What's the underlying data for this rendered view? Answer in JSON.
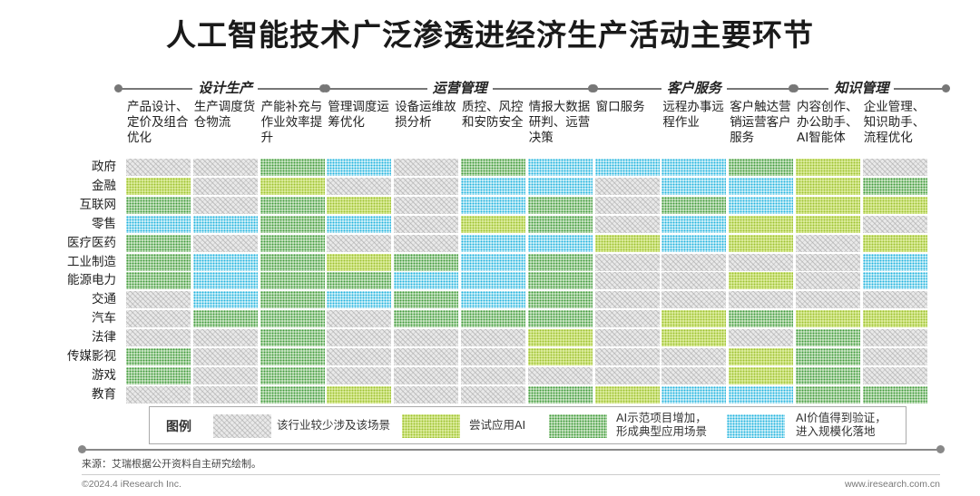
{
  "title": "人工智能技术广泛渗透进经济生产活动主要环节",
  "groups": [
    "设计生产",
    "运营管理",
    "客户服务",
    "知识管理"
  ],
  "chart_data": {
    "type": "heatmap",
    "title": "人工智能技术广泛渗透进经济生产活动主要环节",
    "columns": [
      "产品设计、定价及组合优化",
      "生产调度货仓物流",
      "产能补充与作业效率提升",
      "管理调度运筹优化",
      "设备运维故损分析",
      "质控、风控和安防安全",
      "情报大数据研判、远营决策",
      "窗口服务",
      "远程办事远程作业",
      "客户触达营销运营客户服务",
      "内容创作、办公助手、AI智能体",
      "企业管理、知识助手、流程优化"
    ],
    "column_groups": [
      {
        "name": "设计生产",
        "columns": [
          0,
          1,
          2
        ]
      },
      {
        "name": "运营管理",
        "columns": [
          3,
          4,
          5,
          6
        ]
      },
      {
        "name": "客户服务",
        "columns": [
          7,
          8,
          9
        ]
      },
      {
        "name": "知识管理",
        "columns": [
          10,
          11
        ]
      }
    ],
    "rows": [
      "政府",
      "金融",
      "互联网",
      "零售",
      "医疗医药",
      "工业制造",
      "能源电力",
      "交通",
      "汽车",
      "法律",
      "传媒影视",
      "游戏",
      "教育"
    ],
    "levels": [
      "该行业较少涉及该场景",
      "尝试应用AI",
      "AI示范项目增加，形成典型应用场景",
      "AI价值得到验证，进入规模化落地"
    ],
    "values": [
      [
        0,
        0,
        2,
        3,
        0,
        2,
        3,
        3,
        3,
        2,
        1,
        0
      ],
      [
        1,
        0,
        1,
        0,
        0,
        3,
        3,
        0,
        3,
        3,
        1,
        2
      ],
      [
        2,
        0,
        2,
        1,
        0,
        3,
        2,
        0,
        2,
        3,
        1,
        1
      ],
      [
        3,
        3,
        2,
        3,
        0,
        1,
        2,
        0,
        3,
        1,
        1,
        0
      ],
      [
        2,
        0,
        2,
        0,
        0,
        3,
        3,
        1,
        3,
        1,
        0,
        1
      ],
      [
        2,
        3,
        2,
        1,
        2,
        3,
        2,
        0,
        0,
        0,
        0,
        3
      ],
      [
        2,
        3,
        2,
        2,
        3,
        3,
        2,
        0,
        0,
        1,
        0,
        3
      ],
      [
        0,
        3,
        2,
        3,
        2,
        3,
        2,
        0,
        0,
        0,
        0,
        0
      ],
      [
        0,
        2,
        2,
        0,
        2,
        2,
        2,
        0,
        1,
        2,
        1,
        1
      ],
      [
        0,
        0,
        2,
        0,
        0,
        0,
        1,
        0,
        1,
        0,
        2,
        0
      ],
      [
        2,
        0,
        2,
        0,
        0,
        0,
        1,
        0,
        0,
        1,
        2,
        0
      ],
      [
        2,
        0,
        2,
        0,
        0,
        0,
        0,
        0,
        0,
        1,
        2,
        0
      ],
      [
        0,
        0,
        2,
        1,
        0,
        0,
        2,
        1,
        3,
        3,
        2,
        2
      ]
    ]
  },
  "legend": {
    "title": "图例",
    "items": [
      "该行业较少涉及该场景",
      "尝试应用AI",
      "AI示范项目增加，\n形成典型应用场景",
      "AI价值得到验证，\n进入规模化落地"
    ]
  },
  "footer": {
    "source": "来源：艾瑞根据公开资料自主研究绘制。",
    "copyright": "©2024.4 iResearch Inc.",
    "website": "www.iresearch.com.cn"
  }
}
